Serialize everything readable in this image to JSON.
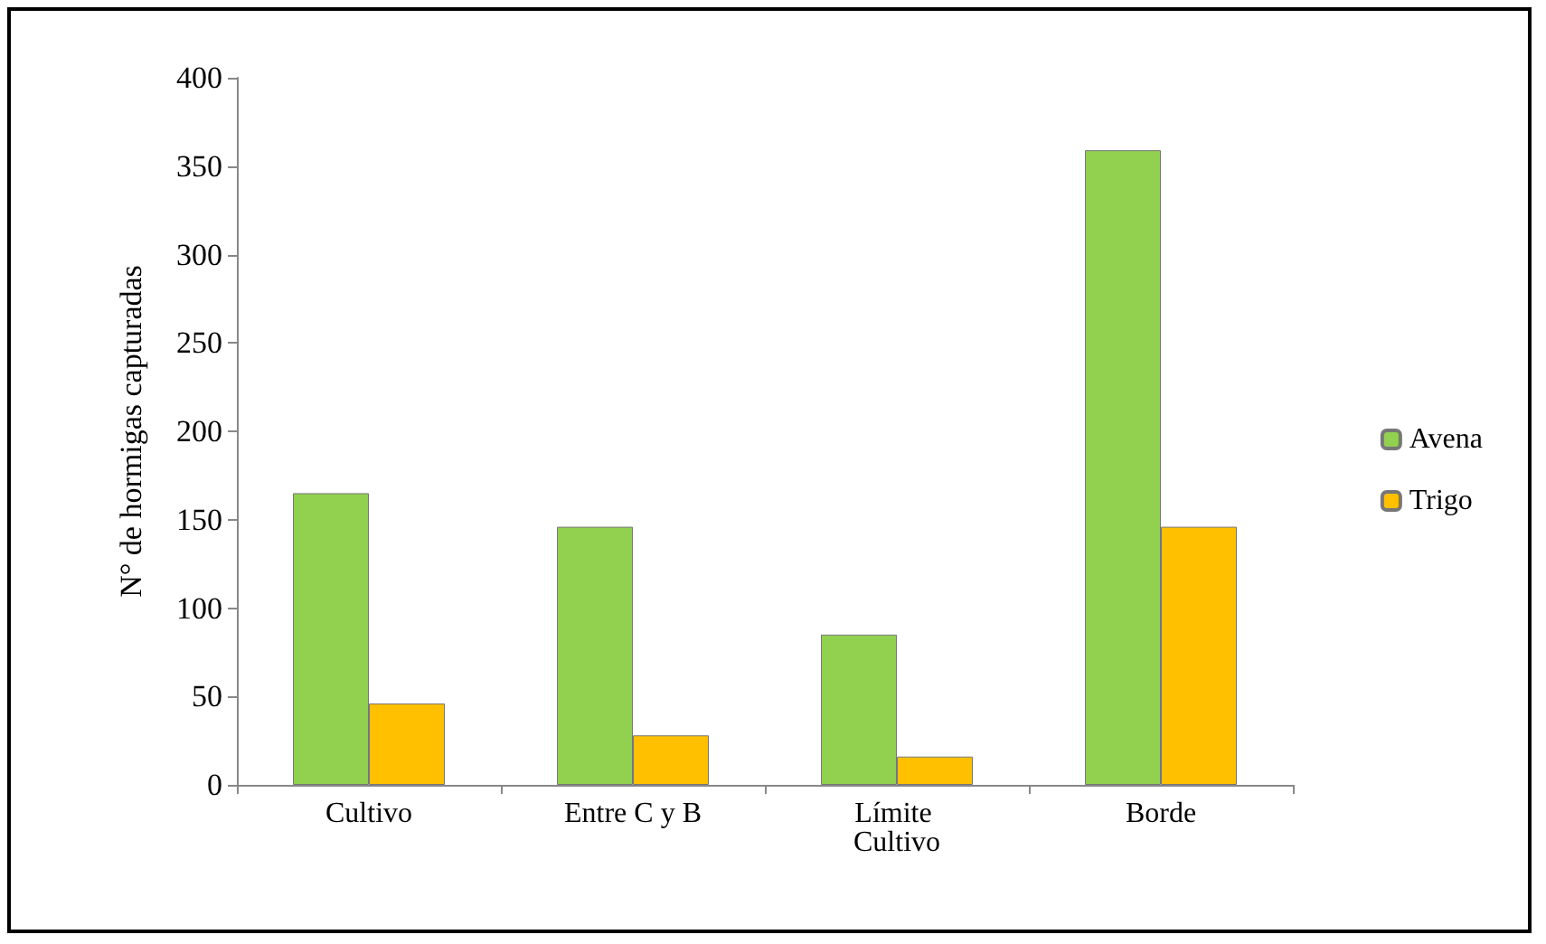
{
  "chart_data": {
    "type": "bar",
    "ylabel": "N° de hormigas capturadas",
    "categories": [
      "Cultivo",
      "Entre C y B",
      "Límite Cultivo",
      "Borde"
    ],
    "series": [
      {
        "name": "Avena",
        "color": "#92d050",
        "values": [
          165,
          146,
          85,
          359
        ]
      },
      {
        "name": "Trigo",
        "color": "#ffc000",
        "values": [
          46,
          28,
          16,
          146
        ]
      }
    ],
    "ylim": [
      0,
      400
    ],
    "yticks": [
      0,
      50,
      100,
      150,
      200,
      250,
      300,
      350,
      400
    ],
    "grid": false,
    "legend": "right"
  }
}
